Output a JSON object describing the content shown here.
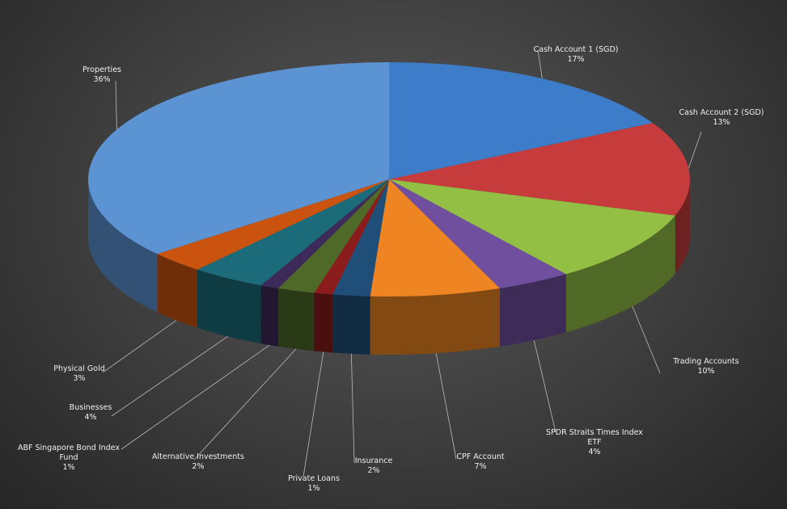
{
  "chart_data": {
    "type": "pie",
    "categories": [
      "Cash Account 1 (SGD)",
      "Cash Account 2 (SGD)",
      "Trading Accounts",
      "SPDR Straits Times Index ETF",
      "CPF Account",
      "Insurance",
      "Private Loans",
      "Alternative Investments",
      "ABF Singapore Bond Index Fund",
      "Businesses",
      "Physical Gold",
      "Properties"
    ],
    "values": [
      17,
      13,
      10,
      4,
      7,
      2,
      1,
      2,
      1,
      4,
      3,
      36
    ],
    "value_labels": [
      "17%",
      "13%",
      "10%",
      "4%",
      "7%",
      "2%",
      "1%",
      "2%",
      "1%",
      "4%",
      "3%",
      "36%"
    ],
    "colors": [
      "#3d7cc9",
      "#c63c3c",
      "#93bf45",
      "#704f9e",
      "#ef8422",
      "#1f4e79",
      "#8b1c1c",
      "#4f6a28",
      "#3c2a5a",
      "#1b6b7a",
      "#c9530f",
      "#5b93d3"
    ]
  }
}
